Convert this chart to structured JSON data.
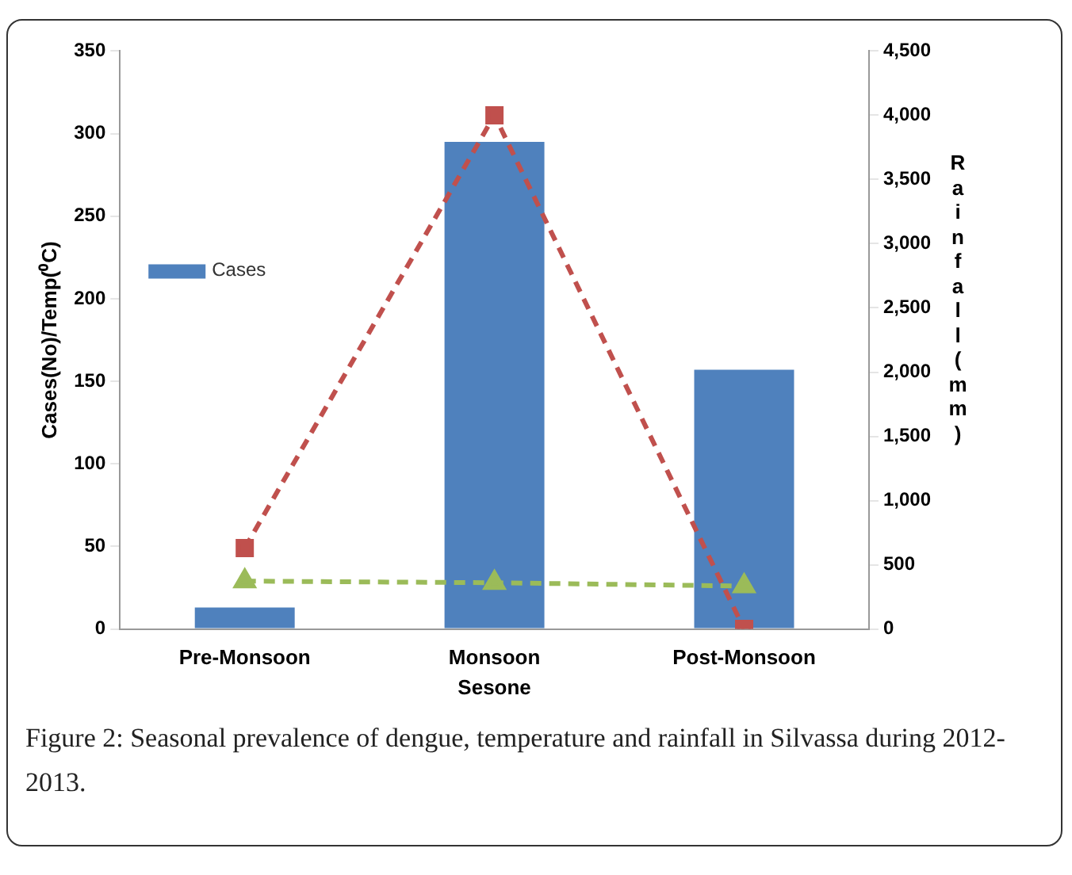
{
  "chart_data": {
    "type": "bar",
    "categories": [
      "Pre-Monsoon",
      "Monsoon",
      "Post-Monsoon"
    ],
    "xlabel": "Sesone",
    "ylabel": "Cases(No)/Temp(⁰C)",
    "y2label": "Rainfall(mm)",
    "series": [
      {
        "name": "Cases",
        "color": "#4f81bd",
        "values": [
          13,
          295,
          157
        ]
      },
      {
        "type": "line",
        "axis": "y2",
        "color": "#c0504d",
        "marker": "square",
        "line_style": "dashed",
        "values": [
          630,
          4000,
          0
        ]
      },
      {
        "type": "line",
        "color": "#9bbb59",
        "marker": "triangle",
        "line_style": "dashed",
        "values": [
          29,
          28,
          26
        ]
      }
    ],
    "ylim": [
      0,
      350
    ],
    "yticks": [
      0,
      50,
      100,
      150,
      200,
      250,
      300,
      350
    ],
    "y2lim": [
      0,
      4500
    ],
    "y2ticks": [
      0,
      {
        "value": 500,
        "label": "500"
      },
      {
        "value": 1000,
        "label": "1,000"
      },
      {
        "value": 1500,
        "label": "1,500"
      },
      {
        "value": 2000,
        "label": "2,000"
      },
      {
        "value": 2500,
        "label": "2,500"
      },
      {
        "value": 3000,
        "label": "3,000"
      },
      {
        "value": 3500,
        "label": "3,500"
      },
      {
        "value": 4000,
        "label": "4,000"
      },
      {
        "value": 4500,
        "label": "4,500"
      }
    ],
    "grid": false,
    "legend": "left",
    "annotations": [
      "Figure 2: Seasonal prevalence of dengue, temperature and rainfall in Silvassa during 2012-2013."
    ]
  }
}
